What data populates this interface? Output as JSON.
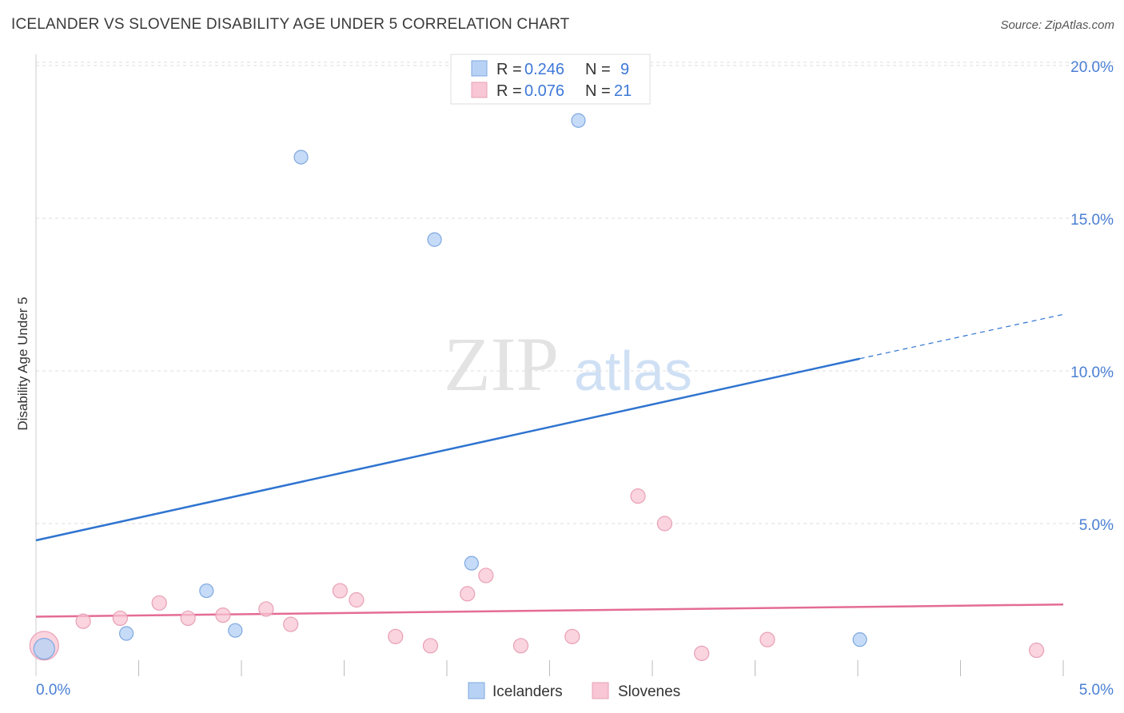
{
  "header": {
    "title": "ICELANDER VS SLOVENE DISABILITY AGE UNDER 5 CORRELATION CHART",
    "source": "Source: ZipAtlas.com"
  },
  "colors": {
    "icelanders_fill": "#b8d2f5",
    "icelanders_stroke": "#7ea8e0",
    "icelanders_line": "#2f74d0",
    "slovenes_fill": "#f8c6d4",
    "slovenes_stroke": "#e8a0b6",
    "slovenes_line": "#e46c95",
    "tick_label": "#4a7fd4",
    "grid": "#dddddd"
  },
  "legend": {
    "r_label": "R =",
    "n_label": "N =",
    "icelanders": {
      "r": "0.246",
      "n": "9"
    },
    "slovenes": {
      "r": "0.076",
      "n": "21"
    }
  },
  "watermark": {
    "zip": "ZIP",
    "atlas": "atlas"
  },
  "chart_data": {
    "type": "scatter",
    "xlabel": "",
    "ylabel": "Disability Age Under 5",
    "xlim": [
      0,
      5
    ],
    "ylim": [
      0,
      20.5
    ],
    "x_tick_labels": [
      "0.0%",
      "5.0%"
    ],
    "y_ticks": [
      5,
      10,
      15,
      20
    ],
    "y_tick_labels": [
      "5.0%",
      "10.0%",
      "15.0%",
      "20.0%"
    ],
    "grid": true,
    "legend_position": "top-center",
    "series": [
      {
        "name": "Icelanders",
        "points": [
          {
            "x": 0.04,
            "y": 0.9
          },
          {
            "x": 0.44,
            "y": 1.4
          },
          {
            "x": 0.83,
            "y": 2.8
          },
          {
            "x": 0.97,
            "y": 1.5
          },
          {
            "x": 1.29,
            "y": 17.0
          },
          {
            "x": 1.94,
            "y": 14.3
          },
          {
            "x": 2.12,
            "y": 3.7
          },
          {
            "x": 2.64,
            "y": 18.2
          },
          {
            "x": 4.01,
            "y": 1.2
          }
        ],
        "trend": {
          "x": [
            0,
            4.01,
            5.0
          ],
          "y": [
            4.45,
            10.4,
            11.85
          ]
        }
      },
      {
        "name": "Slovenes",
        "points": [
          {
            "x": 0.04,
            "y": 1.0
          },
          {
            "x": 0.23,
            "y": 1.8
          },
          {
            "x": 0.41,
            "y": 1.9
          },
          {
            "x": 0.6,
            "y": 2.4
          },
          {
            "x": 0.74,
            "y": 1.9
          },
          {
            "x": 0.91,
            "y": 2.0
          },
          {
            "x": 1.12,
            "y": 2.2
          },
          {
            "x": 1.24,
            "y": 1.7
          },
          {
            "x": 1.48,
            "y": 2.8
          },
          {
            "x": 1.56,
            "y": 2.5
          },
          {
            "x": 1.75,
            "y": 1.3
          },
          {
            "x": 1.92,
            "y": 1.0
          },
          {
            "x": 2.1,
            "y": 2.7
          },
          {
            "x": 2.19,
            "y": 3.3
          },
          {
            "x": 2.36,
            "y": 1.0
          },
          {
            "x": 2.61,
            "y": 1.3
          },
          {
            "x": 2.93,
            "y": 5.9
          },
          {
            "x": 3.06,
            "y": 5.0
          },
          {
            "x": 3.24,
            "y": 0.75
          },
          {
            "x": 3.56,
            "y": 1.2
          },
          {
            "x": 4.87,
            "y": 0.85
          }
        ],
        "trend": {
          "x": [
            0,
            5.0
          ],
          "y": [
            1.95,
            2.35
          ]
        }
      }
    ]
  }
}
